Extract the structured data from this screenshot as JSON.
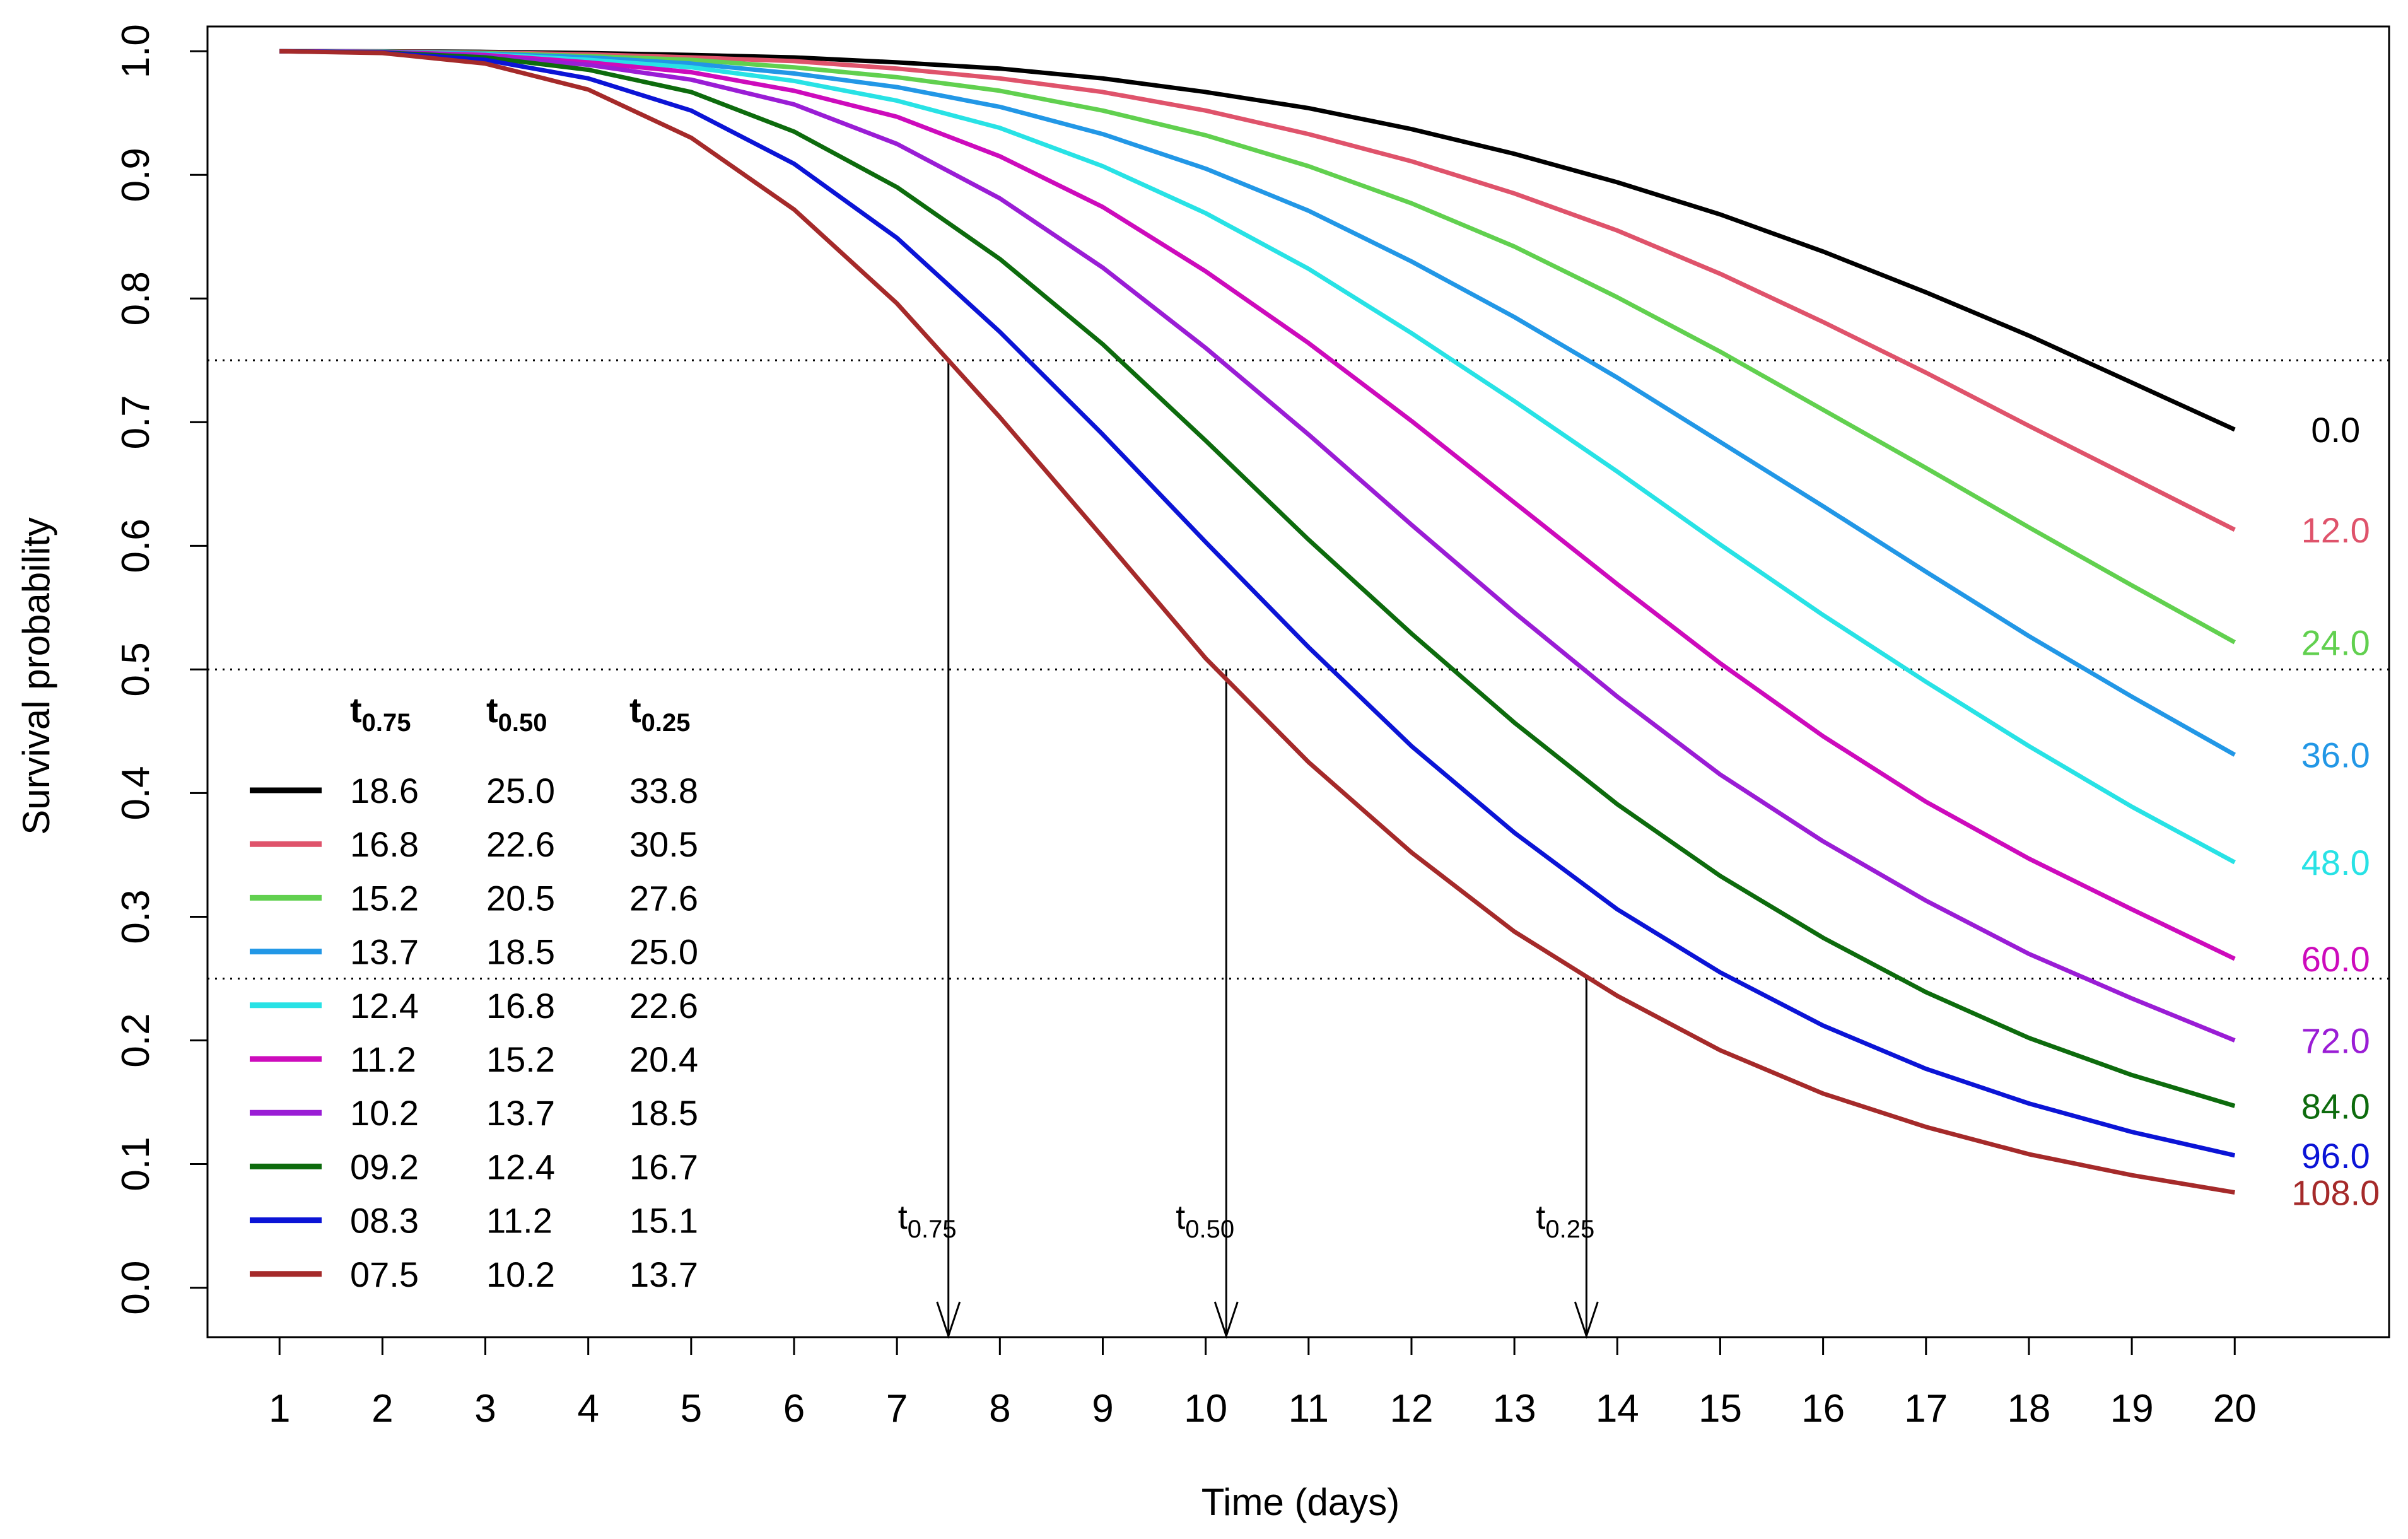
{
  "chart_data": {
    "type": "line",
    "title": "",
    "xlabel": "Time (days)",
    "ylabel": "Survival probability",
    "xlim": [
      0.3,
      21.5
    ],
    "ylim": [
      -0.04,
      1.02
    ],
    "x_ticks": [
      1,
      2,
      3,
      4,
      5,
      6,
      7,
      8,
      9,
      10,
      11,
      12,
      13,
      14,
      15,
      16,
      17,
      18,
      19,
      20
    ],
    "y_ticks": [
      0.0,
      0.1,
      0.2,
      0.3,
      0.4,
      0.5,
      0.6,
      0.7,
      0.8,
      0.9,
      1.0
    ],
    "y_tick_labels": [
      "0.0",
      "0.1",
      "0.2",
      "0.3",
      "0.4",
      "0.5",
      "0.6",
      "0.7",
      "0.8",
      "0.9",
      "1.0"
    ],
    "reference_lines": [
      0.75,
      0.5,
      0.25
    ],
    "x": [
      1,
      2,
      3,
      4,
      5,
      6,
      7,
      8,
      9,
      10,
      11,
      12,
      13,
      14,
      15,
      16,
      17,
      18,
      19,
      20
    ],
    "series": [
      {
        "name": "0.0",
        "color": "#000000",
        "t075": "18.6",
        "t050": "25.0",
        "t025": "33.8",
        "values": [
          1.0,
          0.9999,
          0.9995,
          0.9985,
          0.997,
          0.995,
          0.991,
          0.986,
          0.978,
          0.967,
          0.954,
          0.937,
          0.917,
          0.894,
          0.868,
          0.838,
          0.805,
          0.77,
          0.732,
          0.694
        ]
      },
      {
        "name": "12.0",
        "color": "#df536b",
        "t075": "16.8",
        "t050": "22.6",
        "t025": "30.5",
        "values": [
          1.0,
          0.9998,
          0.999,
          0.9975,
          0.995,
          0.992,
          0.986,
          0.978,
          0.967,
          0.952,
          0.933,
          0.911,
          0.885,
          0.855,
          0.82,
          0.781,
          0.74,
          0.697,
          0.655,
          0.613
        ]
      },
      {
        "name": "24.0",
        "color": "#61d04f",
        "t075": "15.2",
        "t050": "20.5",
        "t025": "27.6",
        "values": [
          1.0,
          0.9997,
          0.9985,
          0.996,
          0.993,
          0.987,
          0.979,
          0.968,
          0.952,
          0.932,
          0.907,
          0.877,
          0.842,
          0.801,
          0.757,
          0.71,
          0.663,
          0.615,
          0.568,
          0.522
        ]
      },
      {
        "name": "36.0",
        "color": "#2297e6",
        "t075": "13.7",
        "t050": "18.5",
        "t025": "25.0",
        "values": [
          1.0,
          0.9996,
          0.998,
          0.995,
          0.99,
          0.982,
          0.971,
          0.955,
          0.933,
          0.905,
          0.871,
          0.83,
          0.785,
          0.736,
          0.684,
          0.632,
          0.579,
          0.527,
          0.478,
          0.431
        ]
      },
      {
        "name": "48.0",
        "color": "#28e2e5",
        "t075": "12.4",
        "t050": "16.8",
        "t025": "22.6",
        "values": [
          1.0,
          0.9995,
          0.9975,
          0.993,
          0.987,
          0.976,
          0.96,
          0.938,
          0.907,
          0.869,
          0.824,
          0.772,
          0.717,
          0.66,
          0.601,
          0.544,
          0.49,
          0.438,
          0.389,
          0.344
        ]
      },
      {
        "name": "60.0",
        "color": "#cd0bbc",
        "t075": "11.2",
        "t050": "15.2",
        "t025": "20.4",
        "values": [
          1.0,
          0.9994,
          0.997,
          0.991,
          0.983,
          0.968,
          0.947,
          0.915,
          0.874,
          0.822,
          0.764,
          0.701,
          0.635,
          0.569,
          0.505,
          0.446,
          0.393,
          0.347,
          0.306,
          0.266
        ]
      },
      {
        "name": "72.0",
        "color": "#9a1dd5",
        "t075": "10.2",
        "t050": "13.7",
        "t025": "18.5",
        "values": [
          1.0,
          0.9992,
          0.996,
          0.989,
          0.977,
          0.957,
          0.925,
          0.881,
          0.825,
          0.76,
          0.69,
          0.617,
          0.546,
          0.478,
          0.415,
          0.361,
          0.313,
          0.27,
          0.234,
          0.2
        ]
      },
      {
        "name": "84.0",
        "color": "#0d6b0d",
        "t075": "09.2",
        "t050": "12.4",
        "t025": "16.7",
        "values": [
          1.0,
          0.999,
          0.995,
          0.985,
          0.967,
          0.935,
          0.89,
          0.832,
          0.763,
          0.685,
          0.605,
          0.529,
          0.457,
          0.391,
          0.333,
          0.283,
          0.239,
          0.202,
          0.172,
          0.147
        ]
      },
      {
        "name": "96.0",
        "color": "#0b14d6",
        "t075": "08.3",
        "t050": "11.2",
        "t025": "15.1",
        "values": [
          1.0,
          0.9988,
          0.993,
          0.978,
          0.952,
          0.909,
          0.849,
          0.773,
          0.69,
          0.603,
          0.518,
          0.438,
          0.368,
          0.306,
          0.255,
          0.212,
          0.177,
          0.149,
          0.126,
          0.107
        ]
      },
      {
        "name": "108.0",
        "color": "#a52a2a",
        "t075": "07.5",
        "t050": "10.2",
        "t025": "13.7",
        "values": [
          1.0,
          0.9985,
          0.99,
          0.969,
          0.93,
          0.872,
          0.796,
          0.704,
          0.607,
          0.509,
          0.425,
          0.352,
          0.288,
          0.236,
          0.192,
          0.157,
          0.13,
          0.108,
          0.091,
          0.077
        ]
      }
    ],
    "legend": {
      "placement": "bottom-left",
      "headers": [
        {
          "main": "t",
          "sub": "0.75"
        },
        {
          "main": "t",
          "sub": "0.50"
        },
        {
          "main": "t",
          "sub": "0.25"
        }
      ]
    },
    "annotations": [
      {
        "main": "t",
        "sub": "0.75",
        "x": 7.5,
        "y": 0.75
      },
      {
        "main": "t",
        "sub": "0.50",
        "x": 10.2,
        "y": 0.5
      },
      {
        "main": "t",
        "sub": "0.25",
        "x": 13.7,
        "y": 0.25
      }
    ]
  }
}
